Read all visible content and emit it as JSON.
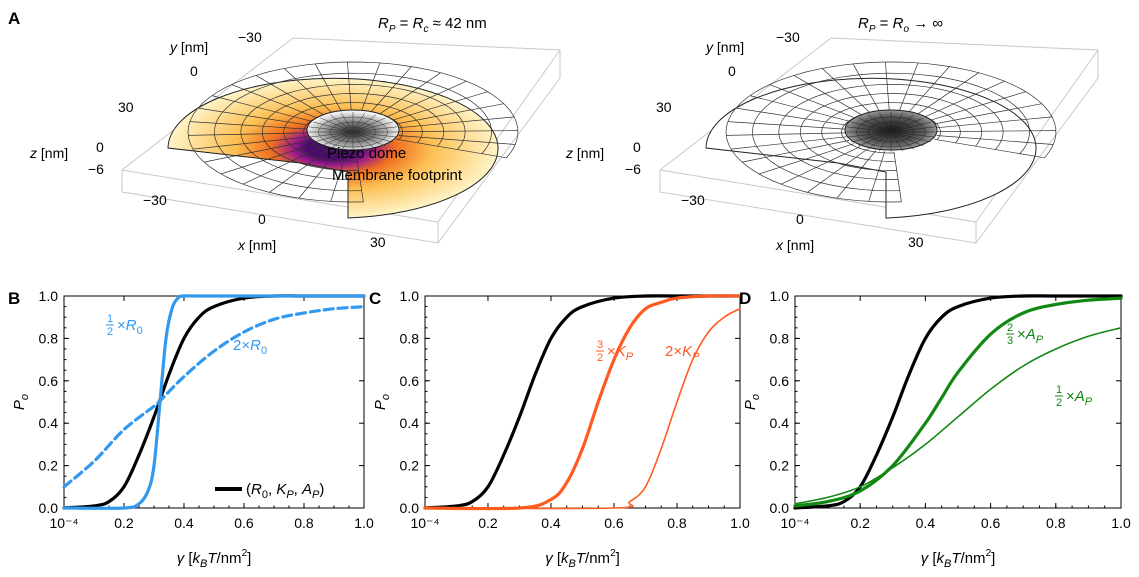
{
  "panel_a": {
    "letter": "A",
    "left": {
      "title": "R_P = R_c ≈ 42 nm",
      "labels": {
        "dome": "Piezo dome",
        "footprint": "Membrane footprint"
      }
    },
    "right": {
      "title": "R_P = R_o → ∞"
    },
    "axes": {
      "y_label": "y [nm]",
      "z_label": "z [nm]",
      "x_label": "x [nm]",
      "y_ticks": [
        "−30",
        "0",
        "30"
      ],
      "z_ticks": [
        "0",
        "−6"
      ],
      "x_ticks": [
        "−30",
        "0",
        "30"
      ]
    },
    "colors": {
      "dome": "#9a9a9a",
      "dome_rim": "#e8e8e8",
      "mesh": "#222222",
      "footprint_inner": "#4b0a6e",
      "footprint_mid": "#f07020",
      "footprint_outer": "#fff4c8"
    }
  },
  "chart_data": [
    {
      "type": "line",
      "letter": "B",
      "xlabel": "γ [k_B T/nm²]",
      "ylabel": "P_o",
      "xlim": [
        0.0001,
        1.0
      ],
      "ylim": [
        0,
        1.0
      ],
      "xticks": [
        "10⁻⁴",
        "0.2",
        "0.4",
        "0.6",
        "0.8",
        "1.0"
      ],
      "yticks": [
        "0.0",
        "0.2",
        "0.4",
        "0.6",
        "0.8",
        "1.0"
      ],
      "series": [
        {
          "name": "(R0, KP, AP)",
          "color": "#000000",
          "style": "solid",
          "width": "thick",
          "x": [
            0.0,
            0.1,
            0.15,
            0.2,
            0.25,
            0.3,
            0.35,
            0.4,
            0.45,
            0.5,
            0.6,
            0.7,
            0.8,
            1.0
          ],
          "y": [
            0.0,
            0.01,
            0.03,
            0.1,
            0.25,
            0.43,
            0.63,
            0.8,
            0.9,
            0.95,
            0.99,
            1.0,
            1.0,
            1.0
          ]
        },
        {
          "name": "1/2×R0",
          "color": "#3399ee",
          "style": "solid",
          "width": "thick",
          "x": [
            0.0,
            0.2,
            0.25,
            0.28,
            0.3,
            0.32,
            0.34,
            0.36,
            0.38,
            0.4,
            0.5,
            1.0
          ],
          "y": [
            0.0,
            0.0,
            0.02,
            0.08,
            0.2,
            0.5,
            0.8,
            0.94,
            0.99,
            1.0,
            1.0,
            1.0
          ]
        },
        {
          "name": "2×R0",
          "color": "#3399ee",
          "style": "dashed",
          "width": "thick",
          "x": [
            0.0,
            0.1,
            0.2,
            0.3,
            0.33,
            0.4,
            0.5,
            0.6,
            0.7,
            0.8,
            0.9,
            1.0
          ],
          "y": [
            0.1,
            0.22,
            0.37,
            0.48,
            0.52,
            0.62,
            0.74,
            0.83,
            0.89,
            0.92,
            0.94,
            0.95
          ]
        }
      ],
      "annotations": [
        {
          "text": "×R0",
          "fraction": "1/2",
          "color": "#3399ee"
        },
        {
          "text": "2×R0",
          "color": "#3399ee"
        }
      ],
      "legend": {
        "placement": "bottom-right",
        "label": "(R0, KP, AP)"
      }
    },
    {
      "type": "line",
      "letter": "C",
      "xlabel": "γ [k_B T/nm²]",
      "ylabel": "P_o",
      "xlim": [
        0.0001,
        1.0
      ],
      "ylim": [
        0,
        1.0
      ],
      "xticks": [
        "10⁻⁴",
        "0.2",
        "0.4",
        "0.6",
        "0.8",
        "1.0"
      ],
      "yticks": [
        "0.0",
        "0.2",
        "0.4",
        "0.6",
        "0.8",
        "1.0"
      ],
      "series": [
        {
          "name": "(R0, KP, AP)",
          "color": "#000000",
          "style": "solid",
          "width": "thick",
          "x": [
            0.0,
            0.1,
            0.15,
            0.2,
            0.25,
            0.3,
            0.35,
            0.4,
            0.45,
            0.5,
            0.6,
            0.7,
            0.8,
            1.0
          ],
          "y": [
            0.0,
            0.01,
            0.03,
            0.1,
            0.25,
            0.43,
            0.63,
            0.8,
            0.9,
            0.95,
            0.99,
            1.0,
            1.0,
            1.0
          ]
        },
        {
          "name": "3/2×KP",
          "color": "#ff5a1f",
          "style": "solid",
          "width": "thick",
          "x": [
            0.0,
            0.3,
            0.4,
            0.45,
            0.5,
            0.55,
            0.6,
            0.65,
            0.7,
            0.75,
            0.8,
            0.9,
            1.0
          ],
          "y": [
            0.0,
            0.0,
            0.04,
            0.12,
            0.28,
            0.5,
            0.7,
            0.85,
            0.94,
            0.97,
            0.99,
            1.0,
            1.0
          ]
        },
        {
          "name": "2×KP",
          "color": "#ff5a1f",
          "style": "solid",
          "width": "thin",
          "x": [
            0.0,
            0.6,
            0.65,
            0.7,
            0.75,
            0.8,
            0.85,
            0.9,
            0.95,
            1.0
          ],
          "y": [
            0.0,
            0.0,
            0.03,
            0.1,
            0.28,
            0.5,
            0.7,
            0.83,
            0.9,
            0.94
          ]
        }
      ],
      "annotations": [
        {
          "text": "×KP",
          "fraction": "3/2",
          "color": "#ff5a1f"
        },
        {
          "text": "2×KP",
          "color": "#ff5a1f"
        }
      ]
    },
    {
      "type": "line",
      "letter": "D",
      "xlabel": "γ [k_B T/nm²]",
      "ylabel": "P_o",
      "xlim": [
        0.0001,
        1.0
      ],
      "ylim": [
        0,
        1.0
      ],
      "xticks": [
        "10⁻⁴",
        "0.2",
        "0.4",
        "0.6",
        "0.8",
        "1.0"
      ],
      "yticks": [
        "0.0",
        "0.2",
        "0.4",
        "0.6",
        "0.8",
        "1.0"
      ],
      "series": [
        {
          "name": "(R0, KP, AP)",
          "color": "#000000",
          "style": "solid",
          "width": "thick",
          "x": [
            0.0,
            0.1,
            0.15,
            0.2,
            0.25,
            0.3,
            0.35,
            0.4,
            0.45,
            0.5,
            0.6,
            0.7,
            0.8,
            1.0
          ],
          "y": [
            0.0,
            0.01,
            0.03,
            0.1,
            0.25,
            0.43,
            0.63,
            0.8,
            0.9,
            0.95,
            0.99,
            1.0,
            1.0,
            1.0
          ]
        },
        {
          "name": "2/3×AP",
          "color": "#118811",
          "style": "solid",
          "width": "thick",
          "x": [
            0.0,
            0.1,
            0.2,
            0.3,
            0.4,
            0.45,
            0.5,
            0.6,
            0.7,
            0.8,
            0.9,
            1.0
          ],
          "y": [
            0.01,
            0.03,
            0.08,
            0.2,
            0.4,
            0.52,
            0.64,
            0.82,
            0.92,
            0.96,
            0.98,
            0.99
          ]
        },
        {
          "name": "1/2×AP",
          "color": "#118811",
          "style": "solid",
          "width": "thin",
          "x": [
            0.0,
            0.1,
            0.2,
            0.3,
            0.4,
            0.5,
            0.6,
            0.7,
            0.8,
            0.9,
            1.0
          ],
          "y": [
            0.02,
            0.05,
            0.1,
            0.19,
            0.3,
            0.43,
            0.56,
            0.67,
            0.75,
            0.81,
            0.85
          ]
        }
      ],
      "annotations": [
        {
          "text": "×AP",
          "fraction": "2/3",
          "color": "#118811"
        },
        {
          "text": "×AP",
          "fraction": "1/2",
          "color": "#118811"
        }
      ]
    }
  ]
}
